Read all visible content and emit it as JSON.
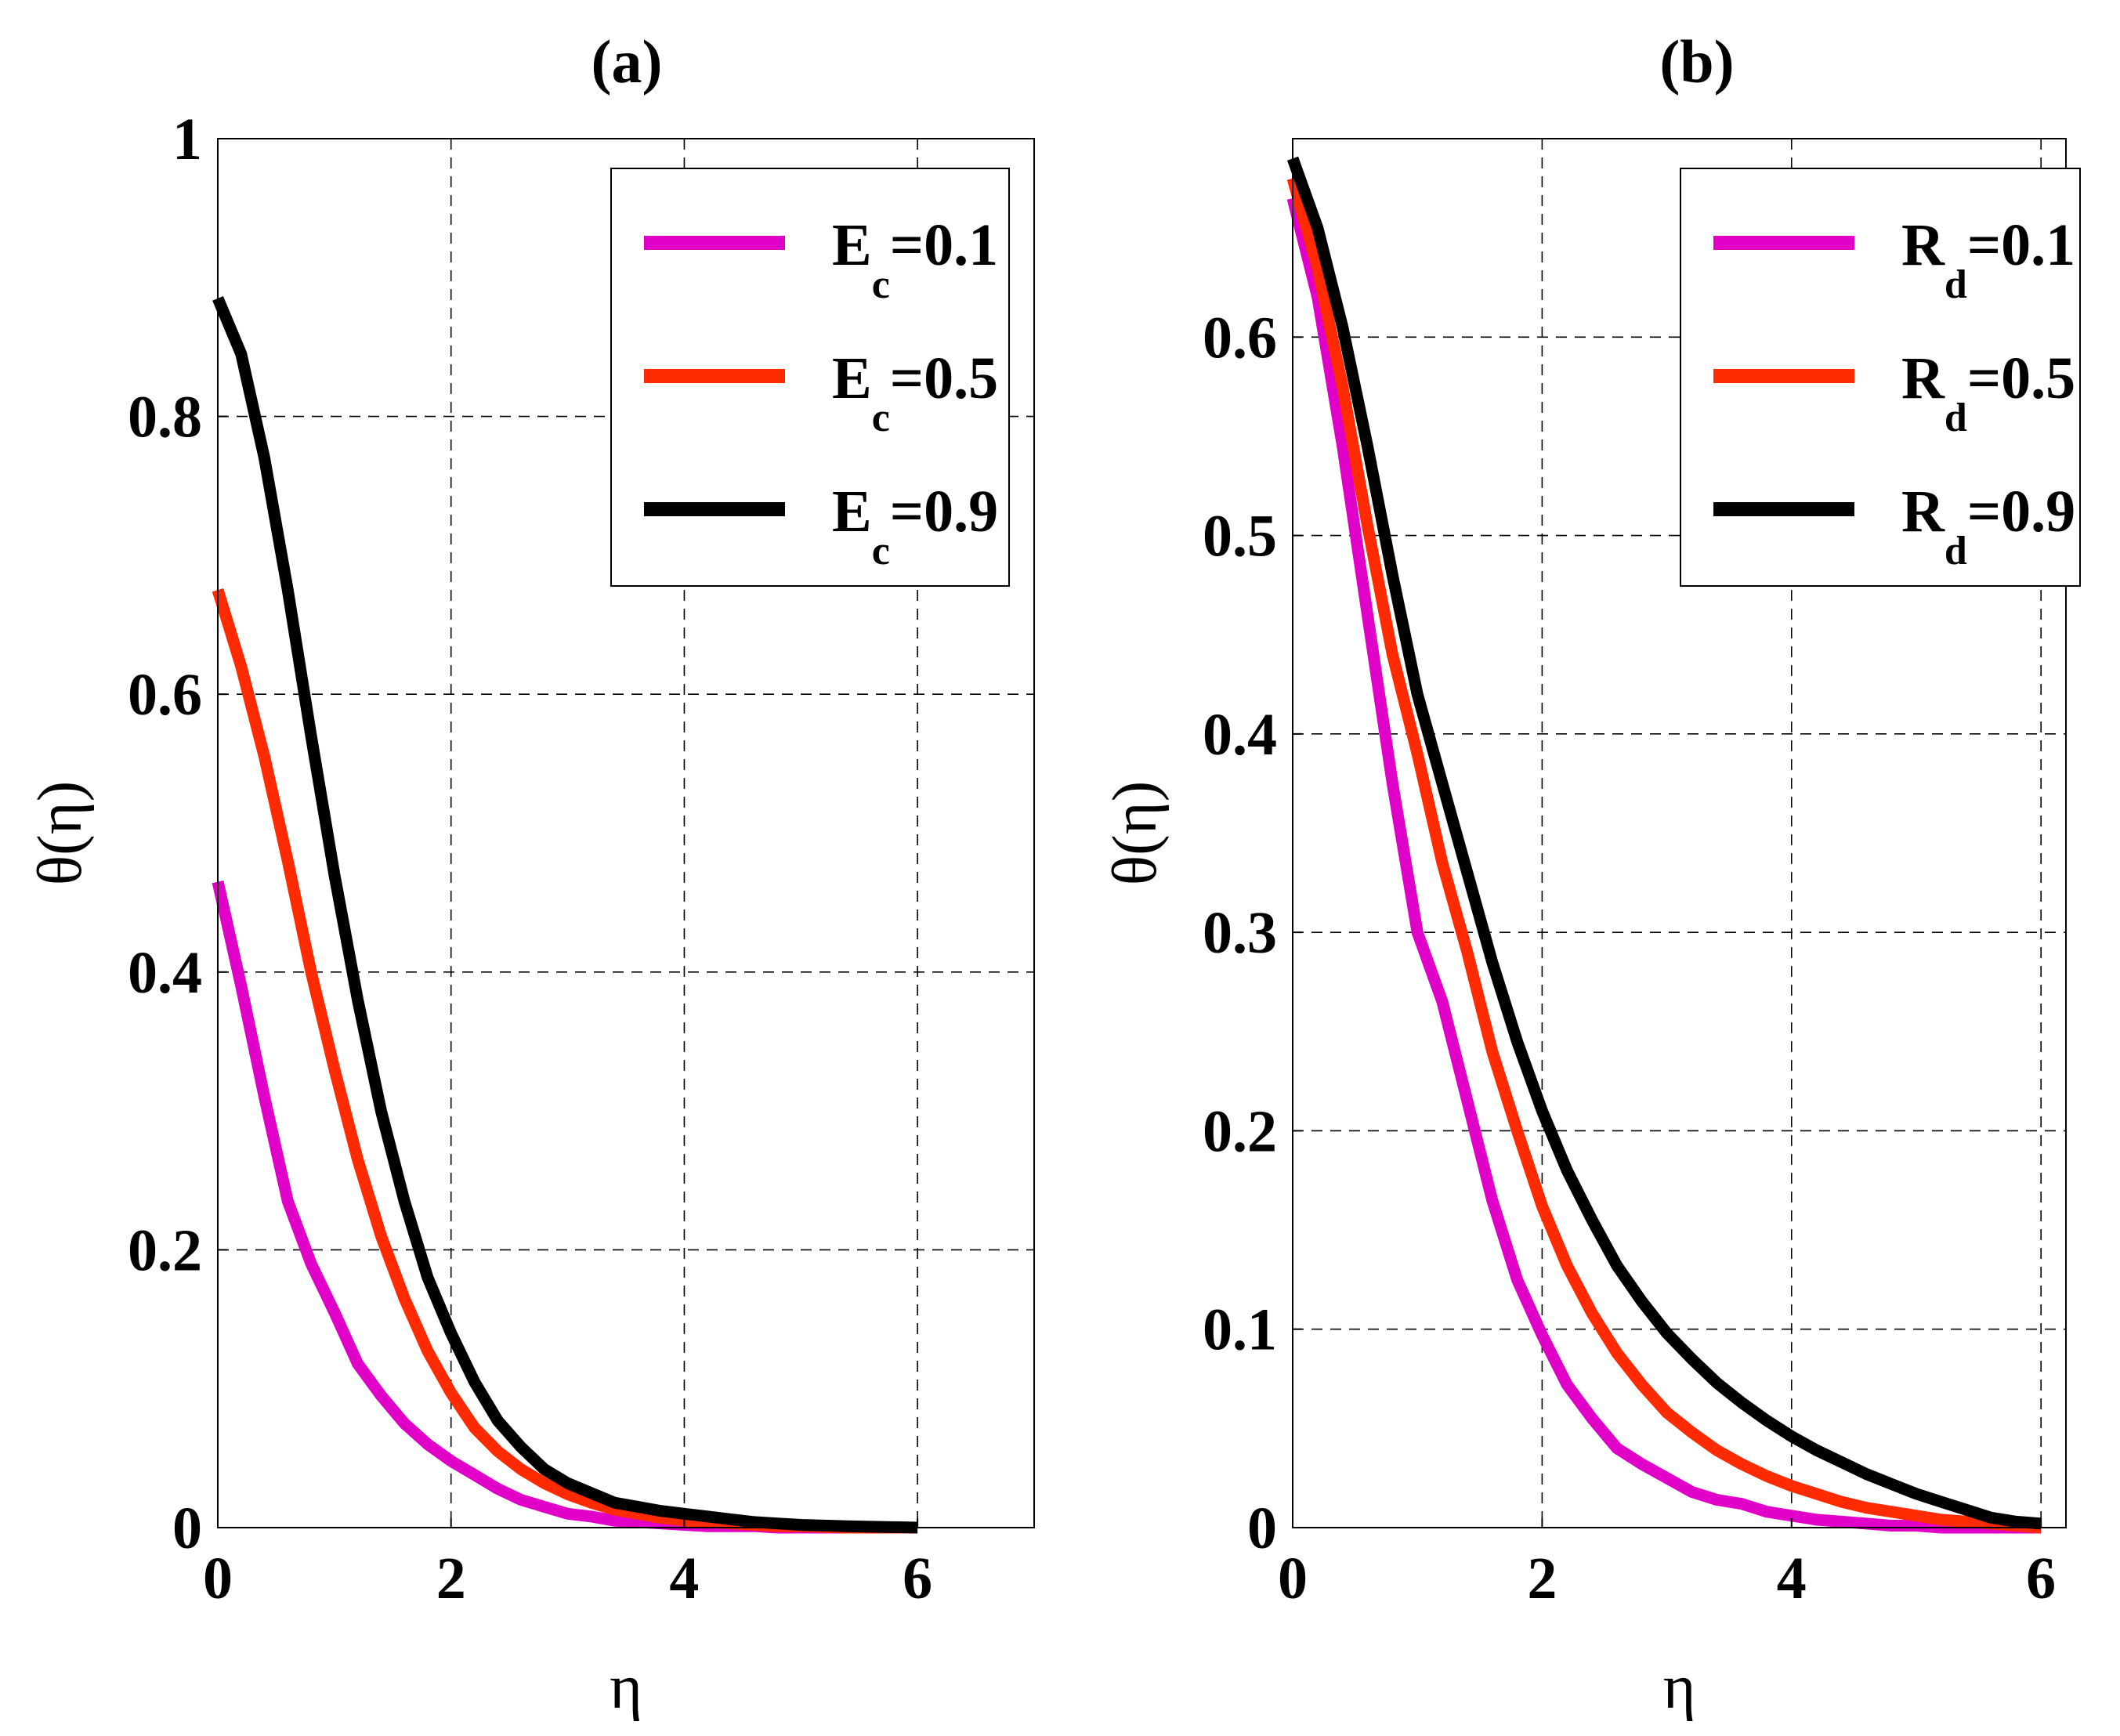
{
  "chart_data": [
    {
      "type": "line",
      "title": "(a)",
      "xlabel": "η",
      "ylabel": "θ(η)",
      "xlim": [
        0,
        7
      ],
      "ylim": [
        0,
        1
      ],
      "xticks": [
        "0",
        "2",
        "4",
        "6"
      ],
      "xtick_values": [
        0,
        2,
        4,
        6
      ],
      "yticks": [
        "0",
        "0.2",
        "0.4",
        "0.6",
        "0.8",
        "1"
      ],
      "ytick_values": [
        0,
        0.2,
        0.4,
        0.6,
        0.8,
        1.0
      ],
      "grid": true,
      "legend_position": "top-right",
      "x": [
        0,
        0.2,
        0.4,
        0.6,
        0.8,
        1.0,
        1.2,
        1.4,
        1.6,
        1.8,
        2.0,
        2.2,
        2.4,
        2.6,
        2.8,
        3.0,
        3.2,
        3.4,
        3.6,
        3.8,
        4.0,
        4.2,
        4.4,
        4.6,
        4.8,
        5.0,
        5.4,
        6.0
      ],
      "series": [
        {
          "name": "E",
          "sub": "c",
          "value_label": "=0.1",
          "color": "#e000c8",
          "values": [
            0.465,
            0.39,
            0.31,
            0.235,
            0.19,
            0.155,
            0.118,
            0.095,
            0.075,
            0.06,
            0.048,
            0.038,
            0.028,
            0.02,
            0.015,
            0.01,
            0.008,
            0.005,
            0.004,
            0.003,
            0.002,
            0.001,
            0.001,
            0.001,
            0.0,
            0.0,
            0.0,
            0.0
          ]
        },
        {
          "name": "E",
          "sub": "c",
          "value_label": "=0.5",
          "color": "#ff2a00",
          "values": [
            0.675,
            0.62,
            0.555,
            0.48,
            0.4,
            0.33,
            0.265,
            0.21,
            0.165,
            0.127,
            0.097,
            0.072,
            0.055,
            0.042,
            0.032,
            0.024,
            0.018,
            0.013,
            0.01,
            0.007,
            0.005,
            0.004,
            0.003,
            0.002,
            0.001,
            0.001,
            0.0,
            0.0
          ]
        },
        {
          "name": "E",
          "sub": "c",
          "value_label": "=0.9",
          "color": "#000000",
          "values": [
            0.885,
            0.845,
            0.77,
            0.675,
            0.57,
            0.47,
            0.38,
            0.3,
            0.235,
            0.18,
            0.14,
            0.105,
            0.077,
            0.058,
            0.042,
            0.032,
            0.025,
            0.018,
            0.015,
            0.012,
            0.01,
            0.008,
            0.006,
            0.004,
            0.003,
            0.002,
            0.001,
            0.0
          ]
        }
      ]
    },
    {
      "type": "line",
      "title": "(b)",
      "xlabel": "η",
      "ylabel": "θ(η)",
      "xlim": [
        0,
        6.2
      ],
      "ylim": [
        0,
        0.7
      ],
      "xticks": [
        "0",
        "2",
        "4",
        "6"
      ],
      "xtick_values": [
        0,
        2,
        4,
        6
      ],
      "yticks": [
        "0",
        "0.1",
        "0.2",
        "0.3",
        "0.4",
        "0.5",
        "0.6"
      ],
      "ytick_values": [
        0,
        0.1,
        0.2,
        0.3,
        0.4,
        0.5,
        0.6
      ],
      "grid": true,
      "legend_position": "top-right",
      "x": [
        0,
        0.2,
        0.4,
        0.6,
        0.8,
        1.0,
        1.2,
        1.4,
        1.6,
        1.8,
        2.0,
        2.2,
        2.4,
        2.6,
        2.8,
        3.0,
        3.2,
        3.4,
        3.6,
        3.8,
        4.0,
        4.2,
        4.4,
        4.6,
        4.8,
        5.0,
        5.2,
        5.4,
        5.6,
        5.8,
        6.0
      ],
      "series": [
        {
          "name": "R",
          "sub": "d",
          "value_label": "=0.1",
          "color": "#e000c8",
          "values": [
            0.67,
            0.62,
            0.545,
            0.46,
            0.375,
            0.3,
            0.265,
            0.215,
            0.165,
            0.125,
            0.097,
            0.072,
            0.055,
            0.04,
            0.032,
            0.025,
            0.018,
            0.014,
            0.012,
            0.008,
            0.006,
            0.004,
            0.003,
            0.002,
            0.001,
            0.001,
            0.0,
            0.0,
            0.0,
            0.0,
            0.0
          ]
        },
        {
          "name": "R",
          "sub": "d",
          "value_label": "=0.5",
          "color": "#ff2a00",
          "values": [
            0.68,
            0.635,
            0.575,
            0.505,
            0.44,
            0.39,
            0.335,
            0.29,
            0.24,
            0.2,
            0.162,
            0.132,
            0.108,
            0.088,
            0.072,
            0.058,
            0.048,
            0.039,
            0.032,
            0.026,
            0.021,
            0.017,
            0.013,
            0.01,
            0.008,
            0.006,
            0.004,
            0.003,
            0.002,
            0.001,
            0.0
          ]
        },
        {
          "name": "R",
          "sub": "d",
          "value_label": "=0.9",
          "color": "#000000",
          "values": [
            0.69,
            0.655,
            0.605,
            0.545,
            0.48,
            0.42,
            0.375,
            0.33,
            0.285,
            0.245,
            0.21,
            0.18,
            0.155,
            0.132,
            0.114,
            0.098,
            0.085,
            0.073,
            0.063,
            0.054,
            0.046,
            0.039,
            0.033,
            0.027,
            0.022,
            0.017,
            0.013,
            0.009,
            0.005,
            0.003,
            0.002
          ]
        }
      ]
    }
  ]
}
